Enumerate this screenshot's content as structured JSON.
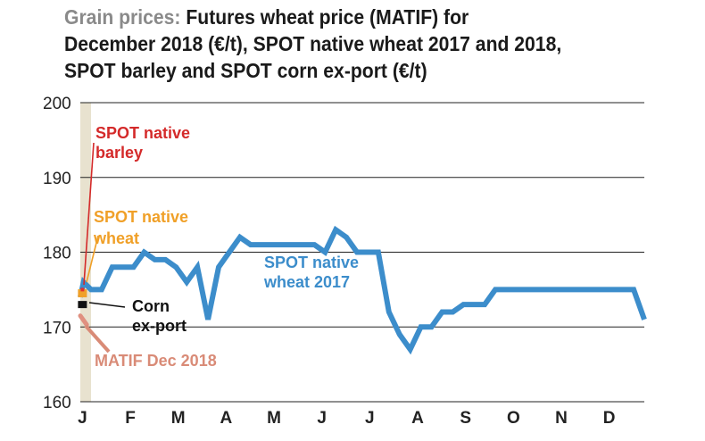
{
  "title": {
    "lead": "Grain prices:",
    "line1": "Futures wheat price (MATIF) for",
    "line2": "December 2018 (€/t), SPOT native wheat 2017 and 2018,",
    "line3": "SPOT barley and SPOT corn ex-port (€/t)"
  },
  "chart_data": {
    "type": "line",
    "ylim": [
      160,
      200
    ],
    "yticks": [
      "200",
      "190",
      "180",
      "170",
      "160"
    ],
    "xticks": [
      "J",
      "F",
      "M",
      "A",
      "M",
      "J",
      "J",
      "A",
      "S",
      "O",
      "N",
      "D"
    ],
    "grid": true,
    "series": [
      {
        "name": "SPOT native wheat 2017",
        "color": "#3c8dcb",
        "points": [
          [
            0,
            174
          ],
          [
            0.3,
            176
          ],
          [
            1,
            175
          ],
          [
            2,
            175
          ],
          [
            3,
            178
          ],
          [
            4,
            178
          ],
          [
            5,
            178
          ],
          [
            6,
            180
          ],
          [
            7,
            179
          ],
          [
            8,
            179
          ],
          [
            9,
            178
          ],
          [
            10,
            176
          ],
          [
            11,
            178
          ],
          [
            12,
            171
          ],
          [
            13,
            178
          ],
          [
            14,
            180
          ],
          [
            15,
            182
          ],
          [
            16,
            181
          ],
          [
            17,
            181
          ],
          [
            18,
            181
          ],
          [
            19,
            181
          ],
          [
            20,
            181
          ],
          [
            21,
            181
          ],
          [
            22,
            181
          ],
          [
            23,
            180
          ],
          [
            24,
            183
          ],
          [
            25,
            182
          ],
          [
            26,
            180
          ],
          [
            27,
            180
          ],
          [
            28,
            180
          ],
          [
            29,
            172
          ],
          [
            30,
            169
          ],
          [
            31,
            167
          ],
          [
            32,
            170
          ],
          [
            33,
            170
          ],
          [
            34,
            172
          ],
          [
            35,
            172
          ],
          [
            36,
            173
          ],
          [
            37,
            173
          ],
          [
            38,
            173
          ],
          [
            39,
            175
          ],
          [
            40,
            175
          ],
          [
            41,
            175
          ],
          [
            42,
            175
          ],
          [
            43,
            175
          ],
          [
            44,
            175
          ],
          [
            45,
            175
          ],
          [
            46,
            175
          ],
          [
            47,
            175
          ],
          [
            48,
            175
          ],
          [
            49,
            175
          ],
          [
            50,
            175
          ],
          [
            51,
            175
          ],
          [
            52,
            175
          ],
          [
            53,
            171
          ]
        ],
        "label": "SPOT native wheat 2017"
      },
      {
        "name": "SPOT native barley",
        "color": "#e03030",
        "points": [
          [
            0.2,
            175
          ]
        ],
        "label": "SPOT native barley"
      },
      {
        "name": "SPOT native wheat",
        "color": "#f0a028",
        "points": [
          [
            0.2,
            174.5
          ]
        ],
        "label": "SPOT native wheat"
      },
      {
        "name": "Corn ex-port",
        "color": "#111111",
        "points": [
          [
            0.2,
            173
          ]
        ],
        "label": "Corn ex-port"
      },
      {
        "name": "MATIF Dec 2018",
        "color": "#e09080",
        "points": [
          [
            0,
            171.5
          ],
          [
            0.6,
            170.3
          ]
        ],
        "label": "MATIF Dec 2018"
      }
    ],
    "annotations": {
      "barley_line1": "SPOT native",
      "barley_line2": "barley",
      "wheat_line1": "SPOT native",
      "wheat_line2": "wheat",
      "wheat2017_line1": "SPOT native",
      "wheat2017_line2": "wheat 2017",
      "corn_line1": "Corn",
      "corn_line2": "ex-port",
      "matif": "MATIF Dec 2018"
    },
    "colors": {
      "highlight_band": "#e8e2cf",
      "grid": "#222222",
      "barley_text": "#d42a2a",
      "wheat_text": "#f0a028",
      "wheat2017_text": "#3c8dcb",
      "corn_text": "#111111",
      "matif_text": "#d98b77"
    }
  }
}
